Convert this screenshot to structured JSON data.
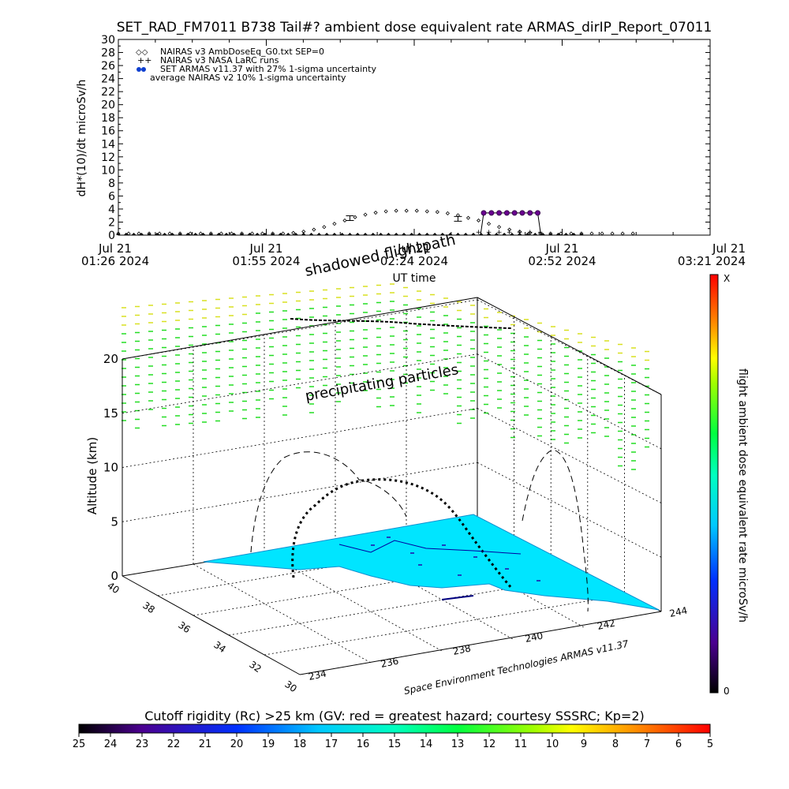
{
  "header": {
    "title": "SET_RAD_FM7011  B738 Tail#? ambient dose equivalent rate ARMAS_dirIP_Report_07011"
  },
  "top_plot": {
    "ylabel": "dH*(10)/dt microSv/h",
    "xlabel": "UT time",
    "legend": [
      {
        "symbol": "◇",
        "label": "NAIRAS v3 AmbDoseEq_G0.txt SEP=0"
      },
      {
        "symbol": "+",
        "label": "NAIRAS v3 NASA LaRC runs"
      },
      {
        "symbol": "●",
        "label": "SET ARMAS v11.37 with 27% 1-sigma uncertainty"
      },
      {
        "symbol": "",
        "label": "average NAIRAS v2 10% 1-sigma uncertainty"
      }
    ],
    "x_ticks": [
      {
        "line1": "Jul 21",
        "line2": "01:26 2024"
      },
      {
        "line1": "Jul 21",
        "line2": "01:55 2024"
      },
      {
        "line1": "Jul 21",
        "line2": "02:24 2024"
      },
      {
        "line1": "Jul 21",
        "line2": "02:52 2024"
      },
      {
        "line1": "Jul 21",
        "line2": "03:21 2024"
      }
    ],
    "y_ticks": [
      "0",
      "2",
      "4",
      "6",
      "8",
      "10",
      "12",
      "14",
      "16",
      "18",
      "20",
      "22",
      "24",
      "26",
      "28",
      "30"
    ]
  },
  "chart_data": [
    {
      "type": "scatter",
      "title": "SET_RAD_FM7011  B738 Tail#? ambient dose equivalent rate ARMAS_dirIP_Report_07011",
      "xlabel": "UT time",
      "ylabel": "dH*(10)/dt microSv/h",
      "ylim": [
        0,
        30
      ],
      "xlim_minutes_after_0126": [
        0,
        115
      ],
      "series": [
        {
          "name": "NAIRAS v3 AmbDoseEq_G0.txt SEP=0",
          "marker": "diamond",
          "x_minutes_after_0126": [
            0,
            2,
            4,
            6,
            8,
            10,
            12,
            14,
            16,
            18,
            20,
            22,
            24,
            26,
            28,
            30,
            32,
            34,
            36,
            38,
            40,
            42,
            44,
            46,
            48,
            50,
            52,
            54,
            56,
            58,
            60,
            62,
            64,
            66,
            68,
            70,
            72,
            74,
            76,
            78,
            80,
            82,
            84,
            86,
            88,
            90,
            92,
            94,
            96,
            98,
            100
          ],
          "values": [
            0,
            0,
            0,
            0,
            0,
            0,
            0,
            0,
            0,
            0,
            0,
            0,
            0,
            0,
            0,
            0,
            0,
            0.1,
            0.3,
            0.6,
            1.0,
            1.5,
            2.0,
            2.5,
            2.9,
            3.2,
            3.4,
            3.5,
            3.5,
            3.5,
            3.4,
            3.3,
            3.1,
            2.8,
            2.4,
            2.0,
            1.5,
            1.0,
            0.6,
            0.3,
            0.1,
            0,
            0,
            0,
            0,
            0,
            0,
            0,
            0,
            0,
            0
          ]
        },
        {
          "name": "NAIRAS v3 NASA LaRC runs",
          "marker": "plus",
          "x_minutes_after_0126": [
            70,
            72,
            74,
            76,
            78,
            80,
            82
          ],
          "values": [
            0.5,
            0.5,
            0.5,
            0.5,
            0.5,
            0.5,
            0.5
          ]
        },
        {
          "name": "SET ARMAS v11.37 with 27% 1-sigma uncertainty",
          "marker": "filled-circle",
          "x_minutes_after_0126": [
            71,
            72.5,
            74,
            75.5,
            77,
            78.5,
            80,
            81.5
          ],
          "values": [
            3.4,
            3.4,
            3.4,
            3.4,
            3.4,
            3.4,
            3.4,
            3.4
          ]
        },
        {
          "name": "average NAIRAS v2 10% 1-sigma uncertainty",
          "marker": "error-bar",
          "x_minutes_after_0126": [
            45,
            66
          ],
          "values": [
            2.6,
            2.5
          ]
        }
      ]
    },
    {
      "type": "scatter",
      "title": "",
      "zlabel": "Altitude (km)",
      "z_ticks": [
        "0",
        "5",
        "10",
        "15",
        "20"
      ],
      "zlim": [
        0,
        20
      ],
      "lon_ticks": [
        "234",
        "236",
        "238",
        "240",
        "242",
        "244"
      ],
      "lat_ticks": [
        "30",
        "32",
        "34",
        "36",
        "38",
        "40"
      ]
    },
    {
      "type": "heatmap",
      "colorbar_label": "Cutoff rigidity (Rc) >25 km (GV: red = greatest hazard; courtesy SSSRC; Kp=2)",
      "ticks": [
        "25",
        "24",
        "23",
        "22",
        "21",
        "20",
        "19",
        "18",
        "17",
        "16",
        "15",
        "14",
        "13",
        "12",
        "11",
        "10",
        "9",
        "8",
        "7",
        "6",
        "5"
      ]
    },
    {
      "type": "heatmap",
      "colorbar_label": "flight ambient dose equivalent rate microSv/h",
      "min_label": "0",
      "max_label": "X"
    }
  ],
  "annotations": {
    "shadowed": "shadowed flightpath",
    "precipitating": "precipitating particles",
    "credit": "Space Environment Technologies ARMAS v11.37"
  },
  "colors": {
    "rainbow": [
      "#000000",
      "#3a0060",
      "#4b0090",
      "#2a20d0",
      "#0050ff",
      "#00a0ff",
      "#00e0ff",
      "#00ffc0",
      "#00ff60",
      "#40ff00",
      "#a0ff00",
      "#ffff00",
      "#ffc000",
      "#ff7000",
      "#ff2000",
      "#ff0000"
    ],
    "surface": "#00e5ff",
    "aurora_green": "#22dd22",
    "aurora_yellow": "#d8e020"
  }
}
